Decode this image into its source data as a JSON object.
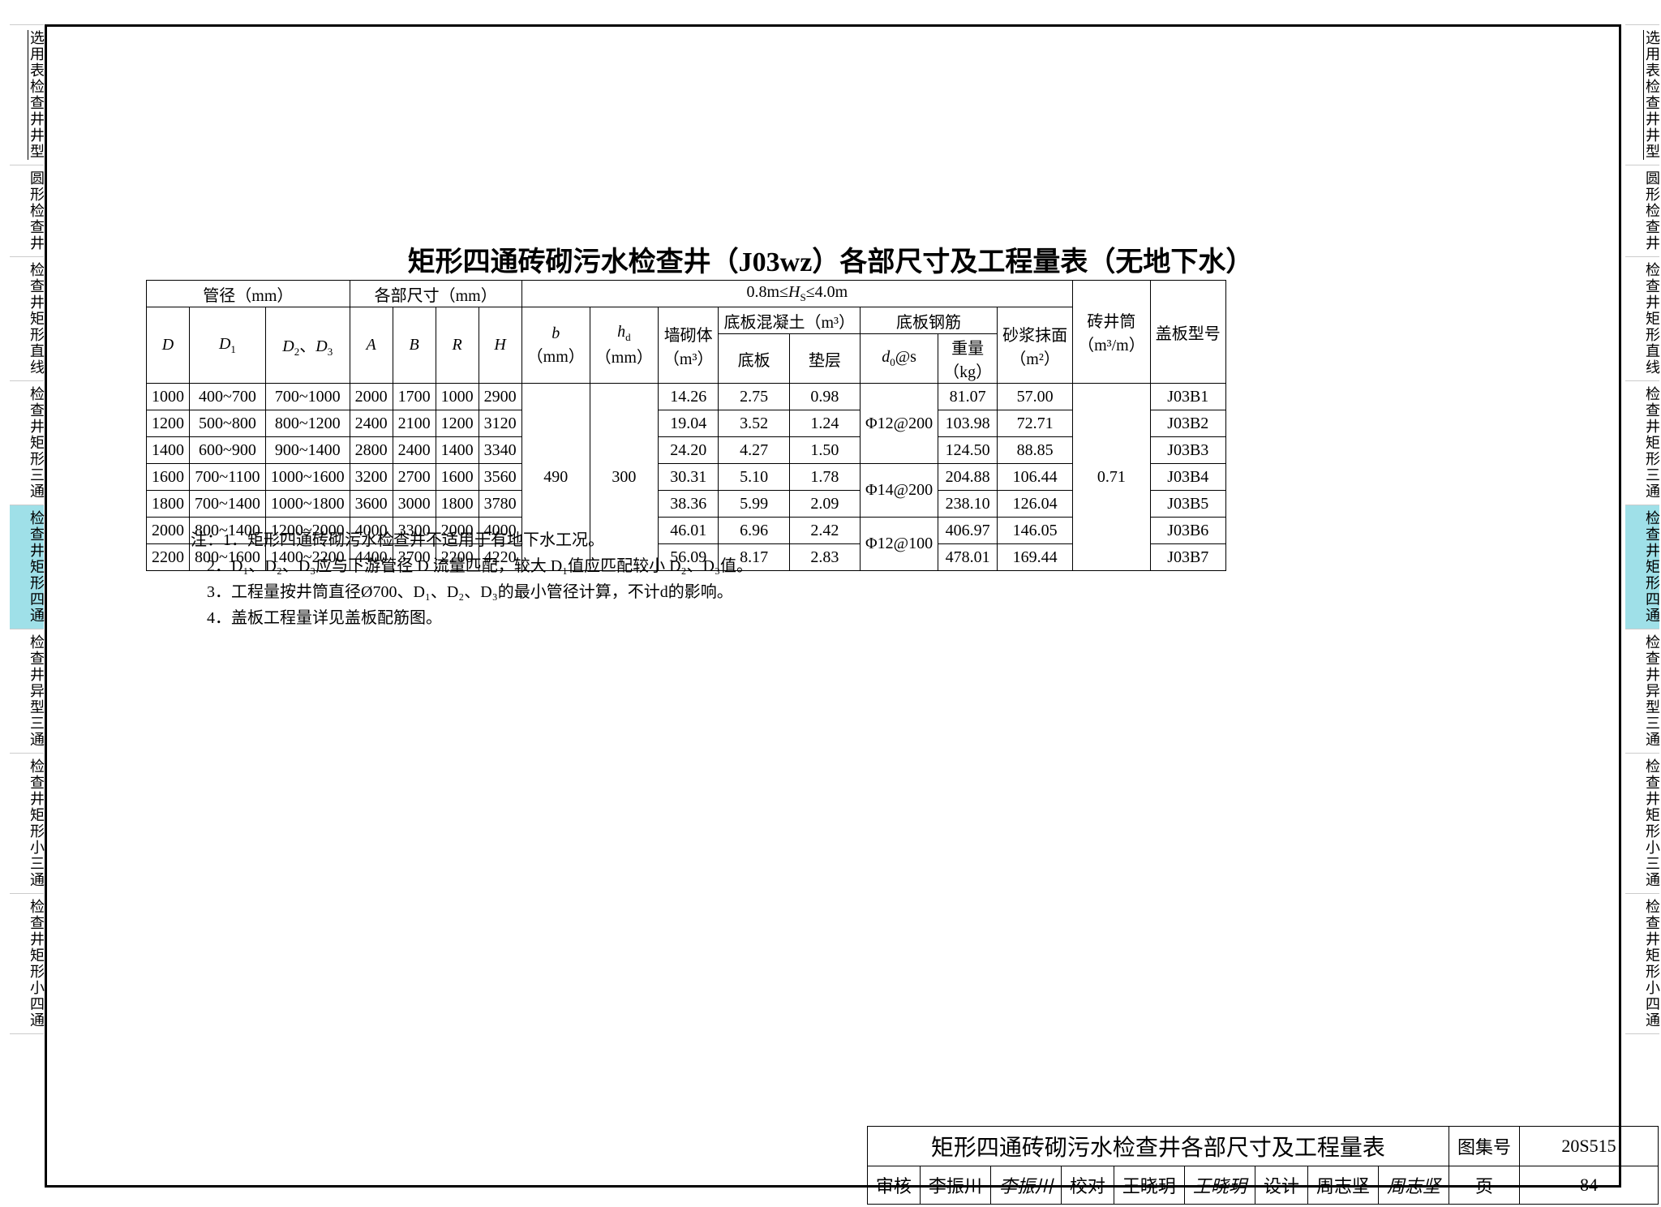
{
  "title": "矩形四通砖砌污水检查井（J03wz）各部尺寸及工程量表（无地下水）",
  "side_tabs": [
    {
      "l1": "选用表",
      "l2": "检查井井型",
      "u": true,
      "active": false
    },
    {
      "l1": "",
      "l2": "圆形检查井",
      "u": false,
      "active": false
    },
    {
      "l1": "检查井",
      "l2": "矩形直线",
      "u": false,
      "active": false
    },
    {
      "l1": "检查井",
      "l2": "矩形三通",
      "u": false,
      "active": false
    },
    {
      "l1": "检查井",
      "l2": "矩形四通",
      "u": false,
      "active": true
    },
    {
      "l1": "检查井",
      "l2": "异型三通",
      "u": false,
      "active": false
    },
    {
      "l1": "检查井",
      "l2": "矩形小三通",
      "u": false,
      "active": false
    },
    {
      "l1": "检查井",
      "l2": "矩形小四通",
      "u": false,
      "active": false
    }
  ],
  "table": {
    "head": {
      "g1": "管径（mm）",
      "g2": "各部尺寸（mm）",
      "g3": "0.8m≤H_S≤4.0m",
      "D": "D",
      "D1": "D₁",
      "D23": "D₂、D₃",
      "A": "A",
      "B": "B",
      "R": "R",
      "H": "H",
      "b": "b",
      "b_unit": "（mm）",
      "hd": "h_d",
      "hd_unit": "（mm）",
      "wall": "墙砌体",
      "wall_unit": "（m³）",
      "conc": "底板混凝土（m³）",
      "conc1": "底板",
      "conc2": "垫层",
      "rebar": "底板钢筋",
      "ds": "d₀@s",
      "wt": "重量",
      "wt_unit": "（kg）",
      "plaster": "砂浆抹面",
      "plaster_unit": "（m²）",
      "brick": "砖井筒",
      "brick_unit": "（m³/m）",
      "cover": "盖板型号"
    },
    "b_val": "490",
    "hd_val": "300",
    "brick_val": "0.71",
    "rebar_group1": "Φ12@200",
    "rebar_group2": "Φ14@200",
    "rebar_group3": "Φ12@100",
    "rows": [
      {
        "D": "1000",
        "D1": "400~700",
        "D23": "700~1000",
        "A": "2000",
        "B": "1700",
        "R": "1000",
        "H": "2900",
        "wall": "14.26",
        "c1": "2.75",
        "c2": "0.98",
        "wt": "81.07",
        "pl": "57.00",
        "cover": "J03B1"
      },
      {
        "D": "1200",
        "D1": "500~800",
        "D23": "800~1200",
        "A": "2400",
        "B": "2100",
        "R": "1200",
        "H": "3120",
        "wall": "19.04",
        "c1": "3.52",
        "c2": "1.24",
        "wt": "103.98",
        "pl": "72.71",
        "cover": "J03B2"
      },
      {
        "D": "1400",
        "D1": "600~900",
        "D23": "900~1400",
        "A": "2800",
        "B": "2400",
        "R": "1400",
        "H": "3340",
        "wall": "24.20",
        "c1": "4.27",
        "c2": "1.50",
        "wt": "124.50",
        "pl": "88.85",
        "cover": "J03B3"
      },
      {
        "D": "1600",
        "D1": "700~1100",
        "D23": "1000~1600",
        "A": "3200",
        "B": "2700",
        "R": "1600",
        "H": "3560",
        "wall": "30.31",
        "c1": "5.10",
        "c2": "1.78",
        "wt": "204.88",
        "pl": "106.44",
        "cover": "J03B4"
      },
      {
        "D": "1800",
        "D1": "700~1400",
        "D23": "1000~1800",
        "A": "3600",
        "B": "3000",
        "R": "1800",
        "H": "3780",
        "wall": "38.36",
        "c1": "5.99",
        "c2": "2.09",
        "wt": "238.10",
        "pl": "126.04",
        "cover": "J03B5"
      },
      {
        "D": "2000",
        "D1": "800~1400",
        "D23": "1200~2000",
        "A": "4000",
        "B": "3300",
        "R": "2000",
        "H": "4000",
        "wall": "46.01",
        "c1": "6.96",
        "c2": "2.42",
        "wt": "406.97",
        "pl": "146.05",
        "cover": "J03B6"
      },
      {
        "D": "2200",
        "D1": "800~1600",
        "D23": "1400~2200",
        "A": "4400",
        "B": "3700",
        "R": "2200",
        "H": "4220",
        "wall": "56.09",
        "c1": "8.17",
        "c2": "2.83",
        "wt": "478.01",
        "pl": "169.44",
        "cover": "J03B7"
      }
    ]
  },
  "notes": {
    "prefix": "注：",
    "n1": "1．矩形四通砖砌污水检查井不适用于有地下水工况。",
    "n2": "2．D₁、D₂、D₃应与下游管径 D 流量匹配，较大 D₁值应匹配较小 D₂、D₃值。",
    "n3": "3．工程量按井筒直径Ø700、D₁、D₂、D₃的最小管径计算，不计d的影响。",
    "n4": "4．盖板工程量详见盖板配筋图。"
  },
  "titleblock": {
    "name": "矩形四通砖砌污水检查井各部尺寸及工程量表",
    "set_label": "图集号",
    "set_no": "20S515",
    "审核": "审核",
    "审核_name": "李振川",
    "审核_sig": "李振川",
    "校对": "校对",
    "校对_name": "王晓玥",
    "校对_sig": "王晓玥",
    "设计": "设计",
    "设计_name": "周志坚",
    "设计_sig": "周志坚",
    "page_label": "页",
    "page_no": "84"
  }
}
